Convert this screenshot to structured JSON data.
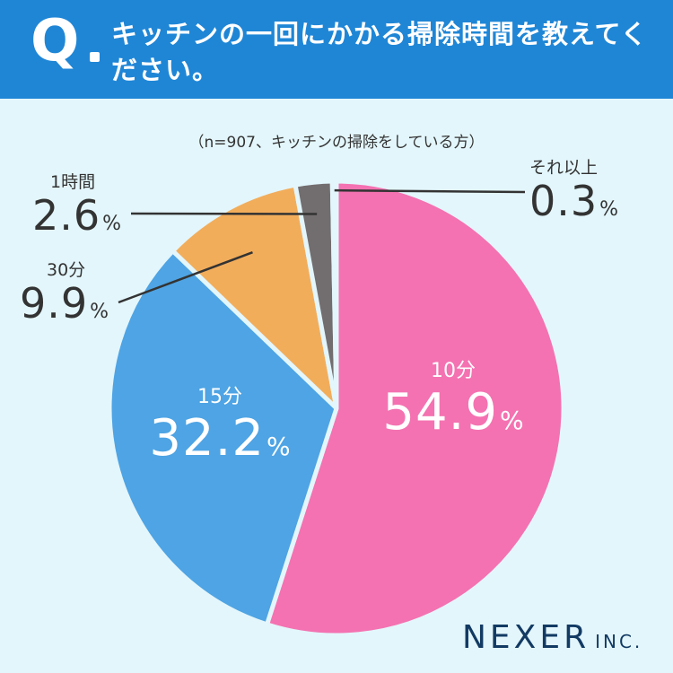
{
  "header": {
    "q_letter": "Q",
    "question": "キッチンの一回にかかる掃除時間を教えてください。"
  },
  "note": "（n=907、キッチンの掃除をしている方）",
  "brand": {
    "name": "NEXER",
    "suffix": "INC."
  },
  "chart_data": {
    "type": "pie",
    "title": "キッチンの一回にかかる掃除時間を教えてください。",
    "subtitle": "（n=907、キッチンの掃除をしている方）",
    "slices": [
      {
        "label": "10分",
        "value": 54.9,
        "display": "54.9",
        "unit": "%",
        "color": "#f472b1"
      },
      {
        "label": "15分",
        "value": 32.2,
        "display": "32.2",
        "unit": "%",
        "color": "#4ea4e4"
      },
      {
        "label": "30分",
        "value": 9.9,
        "display": "9.9",
        "unit": "%",
        "color": "#f2ad5b"
      },
      {
        "label": "1時間",
        "value": 2.6,
        "display": "2.6",
        "unit": "%",
        "color": "#726d6f"
      },
      {
        "label": "それ以上",
        "value": 0.3,
        "display": "0.3",
        "unit": "%",
        "color": "#9aa6ad"
      }
    ]
  }
}
